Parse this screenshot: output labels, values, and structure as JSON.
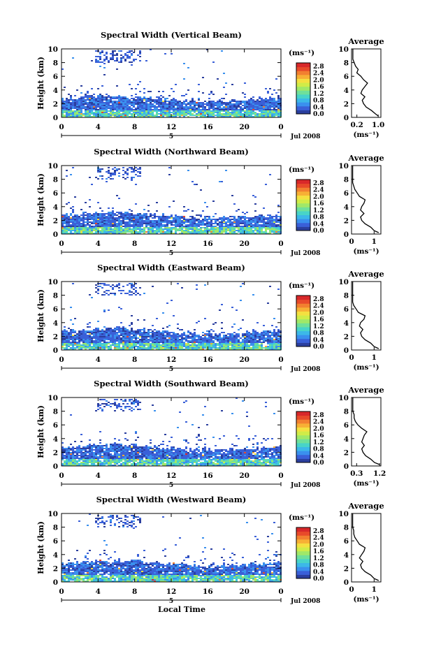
{
  "figure": {
    "xlabel": "Local Time",
    "date_label": "Jul 2008",
    "day_label": "5",
    "ylabel": "Height (km)",
    "unit_label": "(ms⁻¹)",
    "avg_title": "Average",
    "avg_xlabel": "(ms⁻¹)"
  },
  "colorbar": {
    "colors": [
      "#2b3f9e",
      "#3a60d8",
      "#3a90ee",
      "#3cb8e8",
      "#48d4c8",
      "#6fe09a",
      "#a0e868",
      "#d0ec48",
      "#f4e040",
      "#f7b035",
      "#f28030",
      "#e84a2a",
      "#d8282a"
    ],
    "tick_labels": [
      "2.8",
      "2.4",
      "2.0",
      "1.6",
      "1.2",
      "0.8",
      "0.4",
      "0.0"
    ]
  },
  "chart_data": [
    {
      "type": "heatmap",
      "title": "Spectral Width (Vertical Beam)",
      "xlabel": "Local Time",
      "ylabel": "Height (km)",
      "x_ticks": [
        "0",
        "4",
        "8",
        "12",
        "16",
        "20",
        "0"
      ],
      "xlim": [
        0,
        24
      ],
      "y_ticks": [
        "0",
        "2",
        "4",
        "6",
        "8",
        "10"
      ],
      "ylim": [
        0,
        10
      ],
      "colorbar_label": "(ms⁻¹)",
      "clim": [
        0,
        3.0
      ],
      "profile": {
        "title": "Average",
        "xlabel": "(ms⁻¹)",
        "x_ticks": [
          "0.2",
          "1.0"
        ],
        "xlim": [
          0,
          1.1
        ],
        "ylim": [
          0,
          10
        ],
        "height_km": [
          0.2,
          0.5,
          1.0,
          1.5,
          2.0,
          2.5,
          3.0,
          3.5,
          4.0,
          4.5,
          5.0,
          5.5,
          6.0,
          6.5,
          7.0,
          7.5,
          8.0,
          8.5,
          9.0,
          9.5,
          10.0
        ],
        "width_ms": [
          1.0,
          0.9,
          0.75,
          0.55,
          0.45,
          0.4,
          0.5,
          0.35,
          0.4,
          0.5,
          0.6,
          0.45,
          0.35,
          0.2,
          0.25,
          0.15,
          0.1,
          0.05,
          0.05,
          0.05,
          0.05
        ]
      }
    },
    {
      "type": "heatmap",
      "title": "Spectral Width (Northward Beam)",
      "xlabel": "Local Time",
      "ylabel": "Height (km)",
      "x_ticks": [
        "0",
        "4",
        "8",
        "12",
        "16",
        "20",
        "0"
      ],
      "xlim": [
        0,
        24
      ],
      "y_ticks": [
        "0",
        "2",
        "4",
        "6",
        "8",
        "10"
      ],
      "ylim": [
        0,
        10
      ],
      "colorbar_label": "(ms⁻¹)",
      "clim": [
        0,
        3.0
      ],
      "profile": {
        "title": "Average",
        "xlabel": "(ms⁻¹)",
        "x_ticks": [
          "0",
          "1"
        ],
        "xlim": [
          0,
          1.3
        ],
        "ylim": [
          0,
          10
        ],
        "height_km": [
          0.2,
          0.5,
          1.0,
          1.5,
          2.0,
          2.5,
          3.0,
          3.5,
          4.0,
          4.5,
          5.0,
          5.5,
          6.0,
          6.5,
          7.0,
          7.5,
          8.0,
          8.5,
          9.0,
          9.5,
          10.0
        ],
        "width_ms": [
          1.2,
          1.0,
          0.85,
          0.6,
          0.45,
          0.4,
          0.55,
          0.4,
          0.45,
          0.55,
          0.6,
          0.35,
          0.25,
          0.15,
          0.1,
          0.05,
          0.05,
          0.05,
          0.05,
          0.05,
          0.05
        ]
      }
    },
    {
      "type": "heatmap",
      "title": "Spectral Width (Eastward Beam)",
      "xlabel": "Local Time",
      "ylabel": "Height (km)",
      "x_ticks": [
        "0",
        "4",
        "8",
        "12",
        "16",
        "20",
        "0"
      ],
      "xlim": [
        0,
        24
      ],
      "y_ticks": [
        "0",
        "2",
        "4",
        "6",
        "8",
        "10"
      ],
      "ylim": [
        0,
        10
      ],
      "colorbar_label": "(ms⁻¹)",
      "clim": [
        0,
        3.0
      ],
      "profile": {
        "title": "Average",
        "xlabel": "(ms⁻¹)",
        "x_ticks": [
          "0",
          "1"
        ],
        "xlim": [
          0,
          1.3
        ],
        "ylim": [
          0,
          10
        ],
        "height_km": [
          0.2,
          0.5,
          1.0,
          1.5,
          2.0,
          2.5,
          3.0,
          3.5,
          4.0,
          4.5,
          5.0,
          5.5,
          6.0,
          6.5,
          7.0,
          7.5,
          8.0,
          8.5,
          9.0,
          9.5,
          10.0
        ],
        "width_ms": [
          1.2,
          1.0,
          0.85,
          0.6,
          0.45,
          0.4,
          0.5,
          0.35,
          0.4,
          0.55,
          0.6,
          0.3,
          0.2,
          0.1,
          0.05,
          0.05,
          0.05,
          0.05,
          0.05,
          0.05,
          0.05
        ]
      }
    },
    {
      "type": "heatmap",
      "title": "Spectral Width (Southward Beam)",
      "xlabel": "Local Time",
      "ylabel": "Height (km)",
      "x_ticks": [
        "0",
        "4",
        "8",
        "12",
        "16",
        "20",
        "0"
      ],
      "xlim": [
        0,
        24
      ],
      "y_ticks": [
        "0",
        "2",
        "4",
        "6",
        "8",
        "10"
      ],
      "ylim": [
        0,
        10
      ],
      "colorbar_label": "(ms⁻¹)",
      "clim": [
        0,
        3.0
      ],
      "profile": {
        "title": "Average",
        "xlabel": "(ms⁻¹)",
        "x_ticks": [
          "0.3",
          "1.2"
        ],
        "xlim": [
          0.1,
          1.25
        ],
        "ylim": [
          0,
          10
        ],
        "height_km": [
          0.2,
          0.5,
          1.0,
          1.5,
          2.0,
          2.5,
          3.0,
          3.5,
          4.0,
          4.5,
          5.0,
          5.5,
          6.0,
          6.5,
          7.0,
          7.5,
          8.0,
          8.5,
          9.0,
          9.5,
          10.0
        ],
        "width_ms": [
          1.2,
          1.0,
          0.85,
          0.65,
          0.55,
          0.5,
          0.6,
          0.5,
          0.55,
          0.6,
          0.7,
          0.5,
          0.35,
          0.25,
          0.2,
          0.2,
          0.15,
          0.15,
          0.15,
          0.15,
          0.15
        ]
      }
    },
    {
      "type": "heatmap",
      "title": "Spectral Width (Westward Beam)",
      "xlabel": "Local Time",
      "ylabel": "Height (km)",
      "x_ticks": [
        "0",
        "4",
        "8",
        "12",
        "16",
        "20",
        "0"
      ],
      "xlim": [
        0,
        24
      ],
      "y_ticks": [
        "0",
        "2",
        "4",
        "6",
        "8",
        "10"
      ],
      "ylim": [
        0,
        10
      ],
      "colorbar_label": "(ms⁻¹)",
      "clim": [
        0,
        3.0
      ],
      "profile": {
        "title": "Average",
        "xlabel": "(ms⁻¹)",
        "x_ticks": [
          "0",
          "1"
        ],
        "xlim": [
          0,
          1.3
        ],
        "ylim": [
          0,
          10
        ],
        "height_km": [
          0.2,
          0.5,
          1.0,
          1.5,
          2.0,
          2.5,
          3.0,
          3.5,
          4.0,
          4.5,
          5.0,
          5.5,
          6.0,
          6.5,
          7.0,
          7.5,
          8.0,
          8.5,
          9.0,
          9.5,
          10.0
        ],
        "width_ms": [
          1.2,
          1.0,
          0.85,
          0.6,
          0.45,
          0.4,
          0.5,
          0.35,
          0.45,
          0.55,
          0.6,
          0.35,
          0.25,
          0.15,
          0.1,
          0.1,
          0.05,
          0.05,
          0.05,
          0.05,
          0.05
        ]
      }
    }
  ]
}
